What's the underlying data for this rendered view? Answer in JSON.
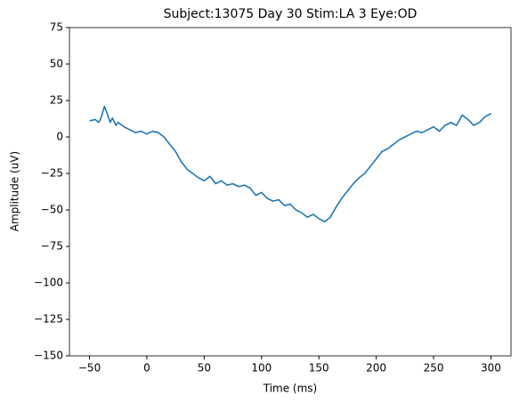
{
  "chart_data": {
    "type": "line",
    "title": "Subject:13075 Day 30 Stim:LA 3 Eye:OD",
    "xlabel": "Time (ms)",
    "ylabel": "Amplitude (uV)",
    "color": "#1f77b4",
    "x": [
      -50,
      -45,
      -42,
      -40,
      -37,
      -35,
      -32,
      -30,
      -27,
      -25,
      -20,
      -15,
      -10,
      -5,
      0,
      5,
      10,
      15,
      20,
      25,
      30,
      35,
      40,
      45,
      50,
      55,
      60,
      65,
      70,
      75,
      80,
      85,
      90,
      95,
      100,
      105,
      110,
      115,
      120,
      125,
      130,
      135,
      140,
      145,
      150,
      155,
      160,
      165,
      170,
      175,
      180,
      185,
      190,
      195,
      200,
      205,
      210,
      215,
      220,
      225,
      230,
      235,
      240,
      245,
      250,
      255,
      260,
      265,
      270,
      275,
      280,
      285,
      290,
      295,
      300
    ],
    "values": [
      11,
      12,
      10,
      13,
      21,
      17,
      10,
      13,
      8,
      10,
      7,
      5,
      3,
      4,
      2,
      4,
      3,
      0,
      -5,
      -10,
      -17,
      -22,
      -25,
      -28,
      -30,
      -27,
      -32,
      -30,
      -33,
      -32,
      -34,
      -33,
      -35,
      -40,
      -38,
      -42,
      -44,
      -43,
      -47,
      -46,
      -50,
      -52,
      -55,
      -53,
      -56,
      -58,
      -55,
      -48,
      -42,
      -37,
      -32,
      -28,
      -25,
      -20,
      -15,
      -10,
      -8,
      -5,
      -2,
      0,
      2,
      4,
      3,
      5,
      7,
      4,
      8,
      10,
      8,
      15,
      12,
      8,
      10,
      14,
      16
    ],
    "xlim": [
      -67.5,
      317.5
    ],
    "xticks": [
      {
        "value": -50,
        "label": "−50"
      },
      0,
      50,
      100,
      150,
      200,
      250,
      300
    ],
    "ylim": [
      -150,
      75
    ],
    "yticks": [
      {
        "value": -150,
        "label": "−150"
      },
      {
        "value": -125,
        "label": "−125"
      },
      {
        "value": -100,
        "label": "−100"
      },
      {
        "value": -75,
        "label": "−75"
      },
      {
        "value": -50,
        "label": "−50"
      },
      {
        "value": -25,
        "label": "−25"
      },
      0,
      25,
      50,
      75
    ]
  }
}
